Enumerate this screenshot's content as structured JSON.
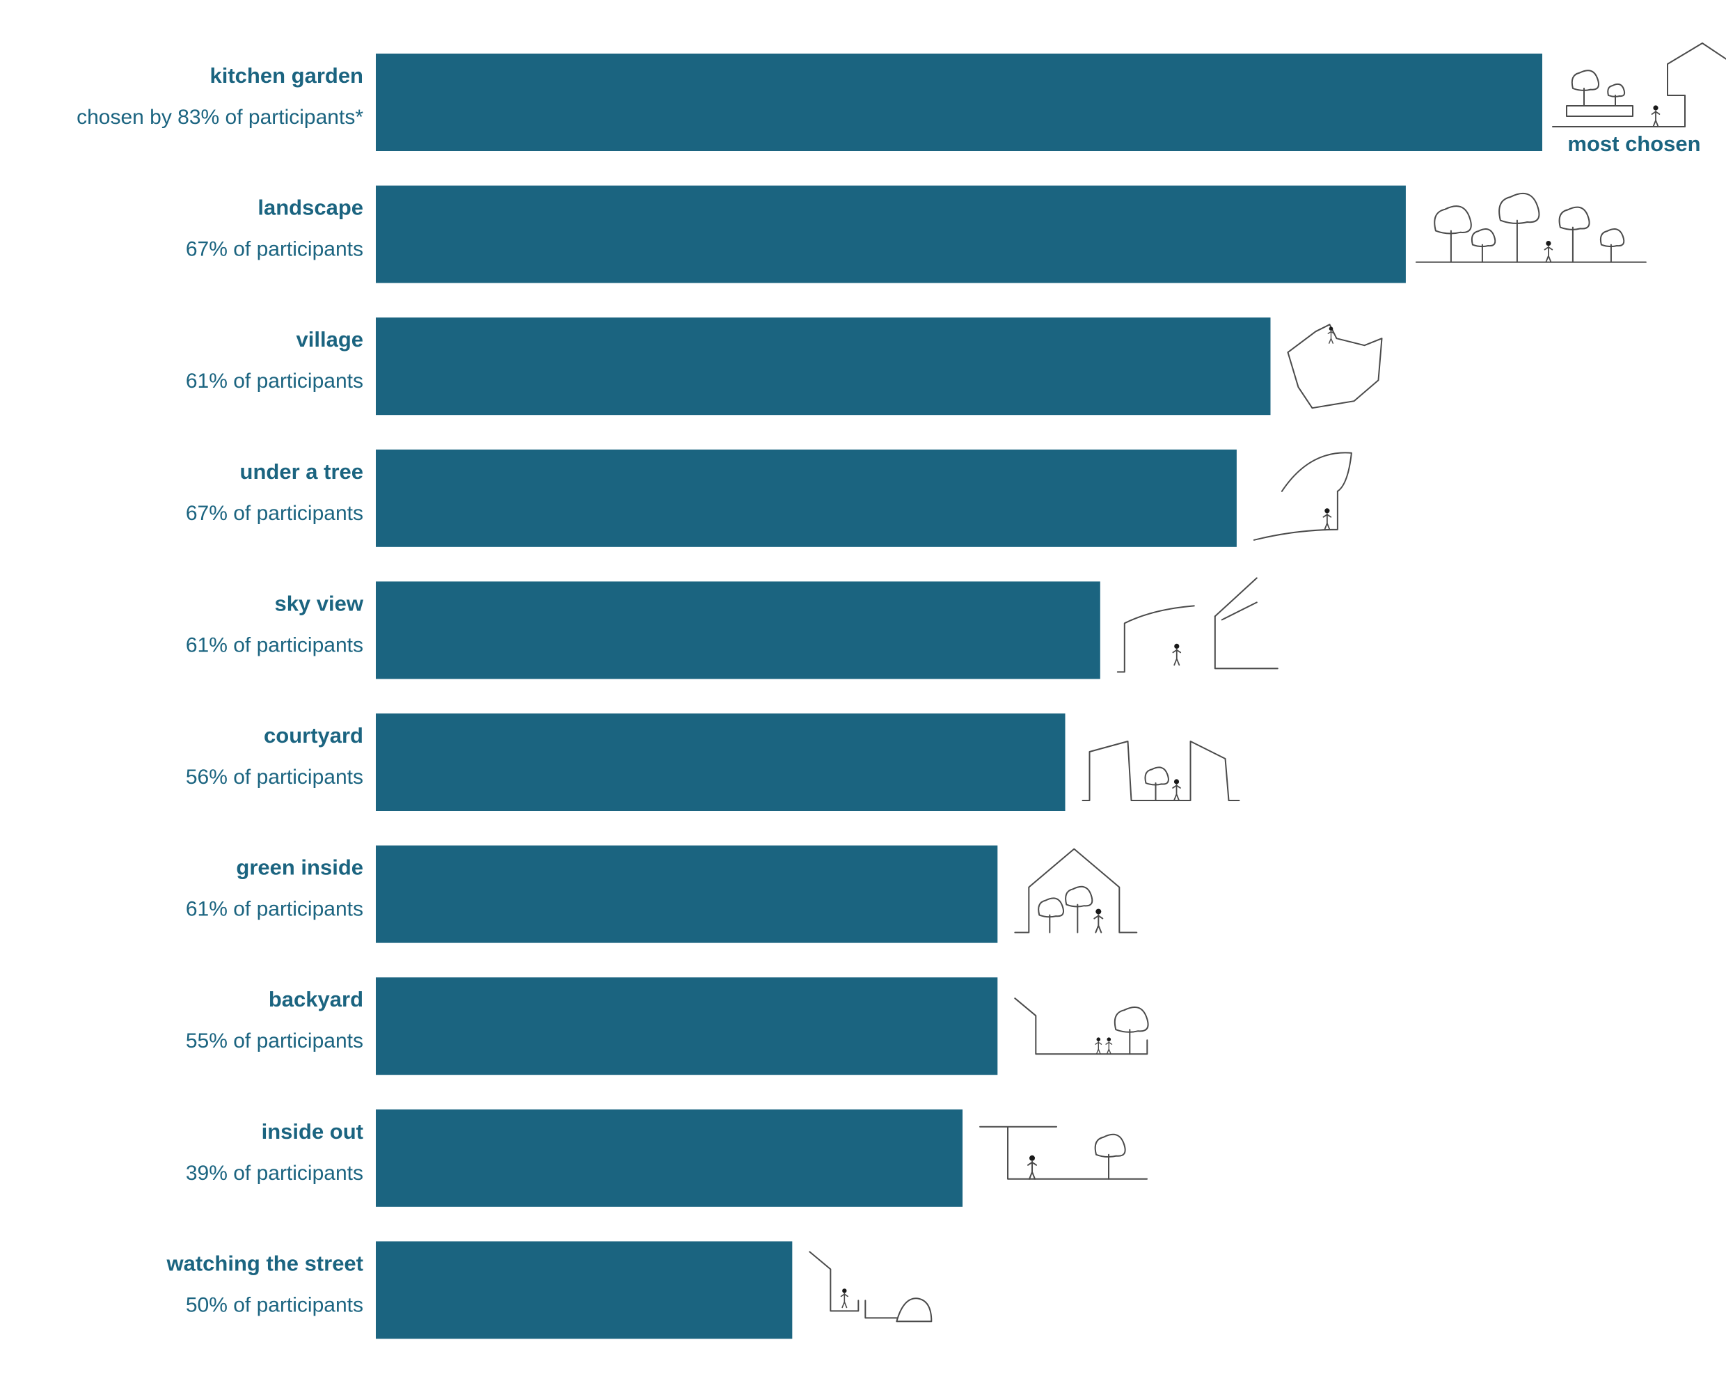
{
  "chart_data": {
    "type": "bar",
    "orientation": "horizontal",
    "categories": [
      "kitchen garden",
      "landscape",
      "village",
      "under a tree",
      "sky view",
      "courtyard",
      "green inside",
      "backyard",
      "inside out",
      "watching the street"
    ],
    "sublabels": [
      "chosen by 83% of participants*",
      "67% of participants",
      "61% of participants",
      "67% of participants",
      "61% of participants",
      "56% of participants",
      "61% of participants",
      "55% of participants",
      "39% of participants",
      "50% of participants"
    ],
    "values": [
      1.0,
      0.883,
      0.767,
      0.738,
      0.621,
      0.591,
      0.533,
      0.533,
      0.503,
      0.357
    ],
    "value_note": "relative bar length, longest bar = 1.0",
    "annotation": "most chosen",
    "icons": [
      "kitchen-garden-sketch-icon",
      "landscape-trees-sketch-icon",
      "village-sketch-icon",
      "under-a-tree-sketch-icon",
      "sky-view-sketch-icon",
      "courtyard-sketch-icon",
      "green-inside-sketch-icon",
      "backyard-sketch-icon",
      "inside-out-sketch-icon",
      "watching-the-street-sketch-icon"
    ],
    "colors": {
      "bar": "#1b6480",
      "text": "#1b6480",
      "sketch": "#4a4a4a"
    },
    "grid": false,
    "legend": "none"
  }
}
